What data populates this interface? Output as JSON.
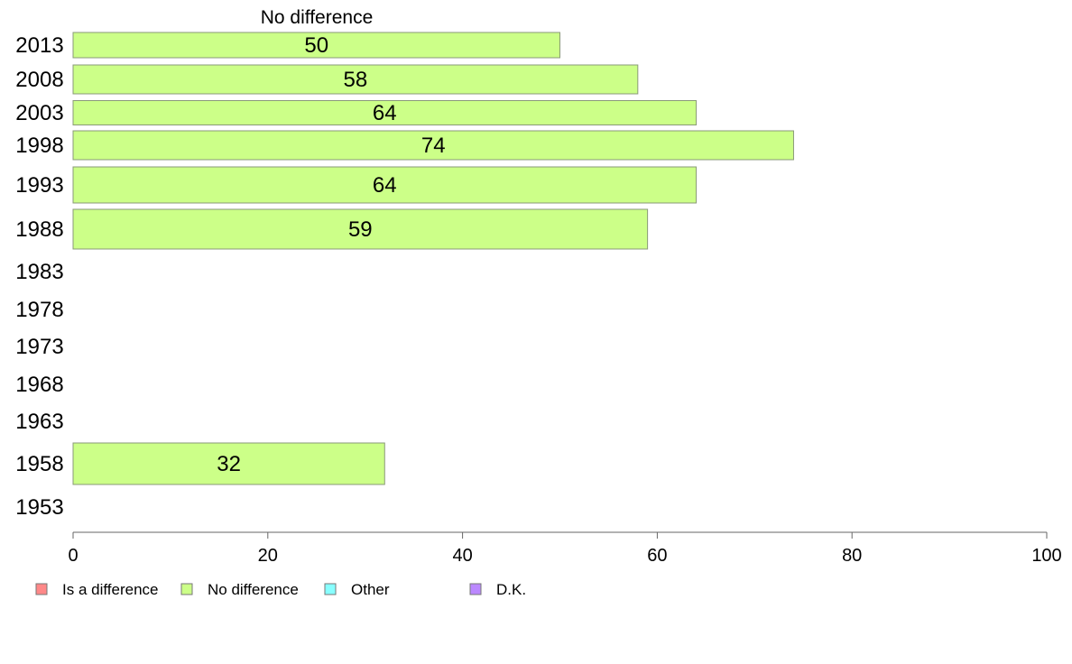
{
  "chart_data": {
    "type": "bar",
    "orientation": "horizontal",
    "title": "No difference",
    "categories": [
      "2013",
      "2008",
      "2003",
      "1998",
      "1993",
      "1988",
      "1983",
      "1978",
      "1973",
      "1968",
      "1963",
      "1958",
      "1953"
    ],
    "series": [
      {
        "name": "No difference",
        "color": "#ccff88",
        "values": [
          50,
          58,
          64,
          74,
          64,
          59,
          null,
          null,
          null,
          null,
          null,
          32,
          null
        ]
      }
    ],
    "xlim": [
      0,
      100
    ],
    "xticks": [
      0,
      20,
      40,
      60,
      80,
      100
    ],
    "grid": false,
    "legend": {
      "placement": "bottom-left",
      "entries": [
        {
          "name": "Is a difference",
          "color": "#ff8888"
        },
        {
          "name": "No difference",
          "color": "#ccff88"
        },
        {
          "name": "Other",
          "color": "#88ffff"
        },
        {
          "name": "D.K.",
          "color": "#bb88ff"
        }
      ]
    }
  }
}
